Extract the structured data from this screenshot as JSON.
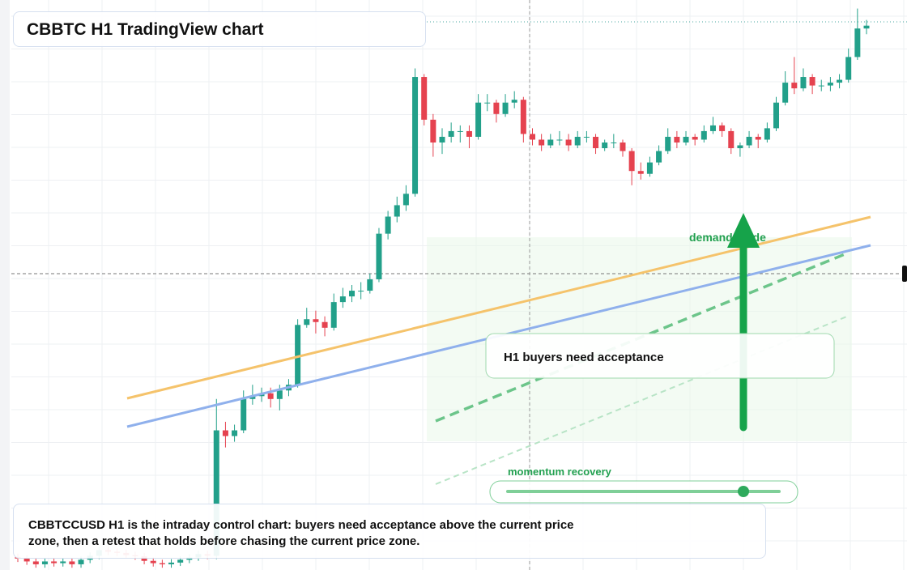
{
  "chart_data": {
    "type": "candlestick",
    "title": "CBBTC H1 TradingView chart",
    "ylim": [
      0,
      100
    ],
    "up_color": "#22a08a",
    "down_color": "#e5424f",
    "annotations": {
      "demand": "demand guide",
      "acceptance": "H1 buyers need acceptance",
      "momentum": "momentum recovery"
    },
    "caption": "CBBTCCUSD H1 is the intraday control chart: buyers need acceptance above the current price zone, then a retest that holds before chasing the current price zone.",
    "ohlc": [
      [
        2.3,
        2.9,
        1.4,
        2
      ],
      [
        2,
        2.6,
        0.9,
        1.5
      ],
      [
        1.5,
        2.1,
        0.4,
        1
      ],
      [
        1,
        2.1,
        0.4,
        1.5
      ],
      [
        1.5,
        2.1,
        0.6,
        1.2
      ],
      [
        1.2,
        2.1,
        0.6,
        1.5
      ],
      [
        1.5,
        2.1,
        0.4,
        1
      ],
      [
        1,
        2.4,
        0.4,
        1.8
      ],
      [
        1.8,
        3.1,
        1.2,
        2.5
      ],
      [
        2.5,
        4.1,
        1.9,
        3.5
      ],
      [
        3.5,
        4.1,
        2.6,
        3.2
      ],
      [
        3.2,
        3.8,
        2.4,
        3
      ],
      [
        3,
        3.6,
        2,
        2.6
      ],
      [
        2.6,
        3.2,
        1.8,
        2.4
      ],
      [
        2.4,
        3,
        1,
        1.6
      ],
      [
        1.6,
        2.2,
        0.6,
        1.2
      ],
      [
        1.2,
        1.8,
        0.4,
        1
      ],
      [
        1,
        1.9,
        0.4,
        1.3
      ],
      [
        1.3,
        2.4,
        0.7,
        1.8
      ],
      [
        1.8,
        2.8,
        1.2,
        2.2
      ],
      [
        2.2,
        3.4,
        1.6,
        2.8
      ],
      [
        2.8,
        3.4,
        1.9,
        2.5
      ],
      [
        2.5,
        30,
        1.9,
        24.5
      ],
      [
        24.5,
        26,
        21.5,
        23.5
      ],
      [
        23.5,
        25.5,
        22.5,
        24.5
      ],
      [
        24.5,
        31.5,
        24,
        30
      ],
      [
        30,
        32.5,
        29,
        30.5
      ],
      [
        30.5,
        32,
        29.5,
        31
      ],
      [
        31,
        32,
        28.5,
        30
      ],
      [
        30,
        32.5,
        28,
        31.5
      ],
      [
        31.5,
        33.5,
        30.5,
        32.5
      ],
      [
        32.5,
        44,
        32,
        43
      ],
      [
        43,
        46,
        42.5,
        44
      ],
      [
        44,
        45.5,
        41.5,
        43.5
      ],
      [
        43.5,
        44.5,
        41,
        42.5
      ],
      [
        42.5,
        48.5,
        42,
        47
      ],
      [
        47,
        49.5,
        46,
        48
      ],
      [
        48,
        50,
        47,
        49
      ],
      [
        49,
        50.5,
        47.5,
        49
      ],
      [
        49,
        52,
        48.5,
        51
      ],
      [
        51,
        60,
        50.5,
        59
      ],
      [
        59,
        63,
        58,
        62
      ],
      [
        62,
        65.5,
        61,
        64
      ],
      [
        64,
        67.5,
        63,
        66
      ],
      [
        66,
        88,
        65.5,
        86.5
      ],
      [
        86.5,
        87,
        78,
        79
      ],
      [
        79,
        80,
        72.5,
        75
      ],
      [
        75,
        77.5,
        73,
        76
      ],
      [
        76,
        78.5,
        75,
        77
      ],
      [
        77,
        78,
        75,
        77
      ],
      [
        77,
        78,
        74,
        76
      ],
      [
        76,
        83.5,
        75.5,
        82
      ],
      [
        82,
        83.5,
        80.5,
        82
      ],
      [
        82,
        82.5,
        78.5,
        80
      ],
      [
        80,
        83.5,
        79.5,
        82
      ],
      [
        82,
        84,
        81,
        82.5
      ],
      [
        82.5,
        83,
        75,
        76.5
      ],
      [
        76.5,
        77.5,
        74.5,
        75.5
      ],
      [
        75.5,
        76.5,
        73.5,
        74.5
      ],
      [
        74.5,
        76.5,
        74,
        75.5
      ],
      [
        75.5,
        77,
        74.5,
        75.5
      ],
      [
        75.5,
        76.5,
        73.5,
        74.5
      ],
      [
        74.5,
        77,
        74,
        76
      ],
      [
        76,
        77,
        75,
        76
      ],
      [
        76,
        76.5,
        73,
        74
      ],
      [
        74,
        75.5,
        73.5,
        75
      ],
      [
        75,
        76.5,
        74,
        75
      ],
      [
        75,
        75.5,
        72.5,
        73.5
      ],
      [
        73.5,
        74,
        67.5,
        70
      ],
      [
        70,
        71.5,
        68.5,
        69.5
      ],
      [
        69.5,
        72.5,
        69,
        71.5
      ],
      [
        71.5,
        74.5,
        71,
        73.5
      ],
      [
        73.5,
        77.5,
        73,
        76
      ],
      [
        76,
        77,
        74,
        75
      ],
      [
        75,
        77,
        74.5,
        76
      ],
      [
        76,
        76.5,
        74.5,
        75.5
      ],
      [
        75.5,
        78,
        75,
        77
      ],
      [
        77,
        79.5,
        76.5,
        78
      ],
      [
        78,
        78.5,
        76,
        77
      ],
      [
        77,
        77.5,
        73,
        74
      ],
      [
        74,
        75,
        72.5,
        74.5
      ],
      [
        74.5,
        77,
        74,
        76
      ],
      [
        76,
        76.5,
        74,
        75.5
      ],
      [
        75.5,
        78.5,
        75,
        77.5
      ],
      [
        77.5,
        83,
        77,
        82
      ],
      [
        82,
        87.5,
        81.5,
        85.5
      ],
      [
        85.5,
        90,
        83.5,
        84.5
      ],
      [
        84.5,
        88,
        84,
        86.5
      ],
      [
        86.5,
        87,
        83.5,
        85
      ],
      [
        85,
        86,
        84,
        85
      ],
      [
        85,
        86.5,
        84,
        85.5
      ],
      [
        85.5,
        87,
        84.5,
        86
      ],
      [
        86,
        91.5,
        85.5,
        90
      ],
      [
        90,
        98.5,
        89.5,
        95
      ],
      [
        95,
        96.5,
        94,
        95.5
      ]
    ]
  }
}
